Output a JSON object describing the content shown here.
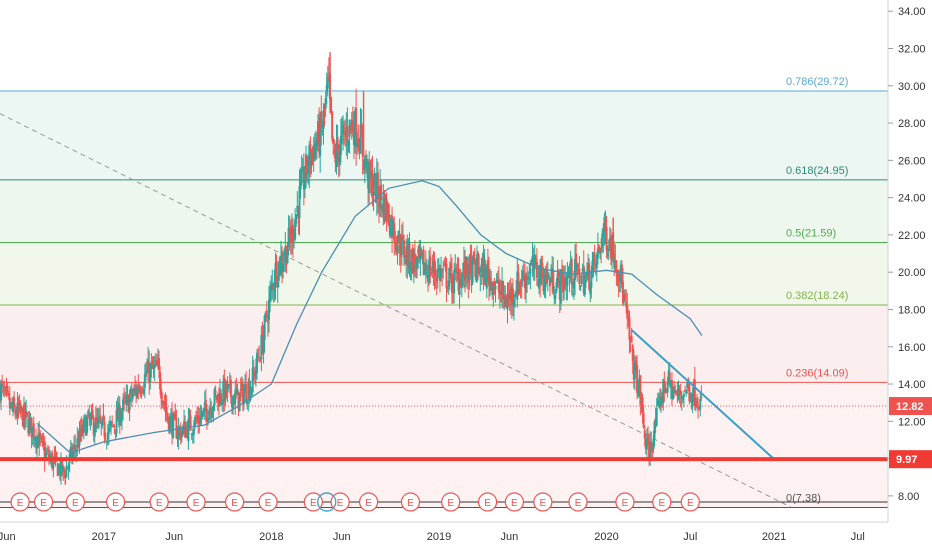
{
  "chart_data": {
    "type": "line",
    "chart_kind": "candlestick",
    "grid": false,
    "colors": {
      "up": "#26a69a",
      "down": "#ef5350",
      "ma": "#4a8fb0",
      "trendline": "#3aa0c8",
      "support": "#f23a35",
      "dashed_trend": "#999999",
      "price_line": "#ef5350",
      "earnings": "#ef5350"
    },
    "y_axis": {
      "ylim": [
        6.6,
        34.6
      ],
      "ticks": [
        "8.00",
        "10.00",
        "12.00",
        "14.00",
        "16.00",
        "18.00",
        "20.00",
        "22.00",
        "24.00",
        "26.00",
        "28.00",
        "30.00",
        "32.00",
        "34.00"
      ]
    },
    "x_axis": {
      "xlim": [
        2016.38,
        2021.68
      ],
      "ticks": [
        {
          "label": "Jun",
          "x": 2016.42
        },
        {
          "label": "2017",
          "x": 2017.0
        },
        {
          "label": "Jun",
          "x": 2017.42
        },
        {
          "label": "2018",
          "x": 2018.0
        },
        {
          "label": "Jun",
          "x": 2018.42
        },
        {
          "label": "2019",
          "x": 2019.0
        },
        {
          "label": "Jun",
          "x": 2019.42
        },
        {
          "label": "2020",
          "x": 2020.0
        },
        {
          "label": "Jul",
          "x": 2020.5
        },
        {
          "label": "2021",
          "x": 2021.0
        },
        {
          "label": "Jul",
          "x": 2021.5
        }
      ]
    },
    "fib_levels": [
      {
        "label": "0.786(29.72)",
        "value": 29.72,
        "color": "#5aa9d6",
        "fill": "#eef6fb"
      },
      {
        "label": "0.618(24.95)",
        "value": 24.95,
        "color": "#2e8b7a",
        "fill": "#ecf6f2"
      },
      {
        "label": "0.5(21.59)",
        "value": 21.59,
        "color": "#4caf50",
        "fill": "#eef7ee"
      },
      {
        "label": "0.382(18.24)",
        "value": 18.24,
        "color": "#80b44b",
        "fill": "#f2f7ec"
      },
      {
        "label": "0.236(14.09)",
        "value": 14.09,
        "color": "#ef5350",
        "fill": "#fbeeee"
      },
      {
        "label": "0(7.38)",
        "value": 7.38,
        "color": "#555555",
        "fill": "#fdf1f1"
      }
    ],
    "support_level": {
      "label": "9.97",
      "value": 9.97
    },
    "last_price": {
      "label": "12.82",
      "value": 12.82
    },
    "moving_average": [
      [
        2016.6,
        11.9
      ],
      [
        2016.8,
        10.3
      ],
      [
        2017.0,
        10.9
      ],
      [
        2017.3,
        11.4
      ],
      [
        2017.6,
        11.8
      ],
      [
        2017.8,
        12.8
      ],
      [
        2018.0,
        14.0
      ],
      [
        2018.15,
        17.2
      ],
      [
        2018.3,
        20.0
      ],
      [
        2018.5,
        23.0
      ],
      [
        2018.7,
        24.5
      ],
      [
        2018.9,
        24.9
      ],
      [
        2019.0,
        24.6
      ],
      [
        2019.1,
        23.6
      ],
      [
        2019.25,
        22.0
      ],
      [
        2019.4,
        21.0
      ],
      [
        2019.6,
        20.2
      ],
      [
        2019.8,
        19.9
      ],
      [
        2020.0,
        20.1
      ],
      [
        2020.15,
        19.9
      ],
      [
        2020.3,
        18.8
      ],
      [
        2020.5,
        17.5
      ],
      [
        2020.57,
        16.6
      ]
    ],
    "price_path": [
      [
        2016.38,
        13.8
      ],
      [
        2016.45,
        12.6
      ],
      [
        2016.52,
        12.3
      ],
      [
        2016.6,
        11.2
      ],
      [
        2016.65,
        10.2
      ],
      [
        2016.72,
        9.6
      ],
      [
        2016.76,
        9.2
      ],
      [
        2016.82,
        10.4
      ],
      [
        2016.9,
        12.0
      ],
      [
        2016.96,
        11.8
      ],
      [
        2017.03,
        11.4
      ],
      [
        2017.1,
        12.5
      ],
      [
        2017.18,
        13.5
      ],
      [
        2017.26,
        14.6
      ],
      [
        2017.32,
        14.8
      ],
      [
        2017.38,
        12.2
      ],
      [
        2017.45,
        11.4
      ],
      [
        2017.52,
        11.8
      ],
      [
        2017.6,
        12.4
      ],
      [
        2017.66,
        13.2
      ],
      [
        2017.73,
        13.6
      ],
      [
        2017.8,
        13.2
      ],
      [
        2017.88,
        14.0
      ],
      [
        2017.94,
        16.0
      ],
      [
        2018.02,
        20.0
      ],
      [
        2018.08,
        21.0
      ],
      [
        2018.12,
        22.0
      ],
      [
        2018.18,
        24.5
      ],
      [
        2018.24,
        26.5
      ],
      [
        2018.3,
        27.5
      ],
      [
        2018.34,
        30.0
      ],
      [
        2018.37,
        26.0
      ],
      [
        2018.42,
        27.0
      ],
      [
        2018.48,
        28.0
      ],
      [
        2018.52,
        27.5
      ],
      [
        2018.58,
        25.0
      ],
      [
        2018.62,
        24.5
      ],
      [
        2018.68,
        23.5
      ],
      [
        2018.74,
        22.0
      ],
      [
        2018.8,
        21.0
      ],
      [
        2018.86,
        20.5
      ],
      [
        2018.93,
        20.2
      ],
      [
        2019.0,
        20.0
      ],
      [
        2019.08,
        19.5
      ],
      [
        2019.16,
        20.0
      ],
      [
        2019.24,
        20.2
      ],
      [
        2019.32,
        19.6
      ],
      [
        2019.4,
        18.4
      ],
      [
        2019.48,
        19.5
      ],
      [
        2019.56,
        20.2
      ],
      [
        2019.64,
        19.7
      ],
      [
        2019.72,
        19.3
      ],
      [
        2019.8,
        20.0
      ],
      [
        2019.88,
        19.6
      ],
      [
        2019.94,
        20.5
      ],
      [
        2019.98,
        22.2
      ],
      [
        2020.03,
        21.5
      ],
      [
        2020.08,
        20.0
      ],
      [
        2020.12,
        17.5
      ],
      [
        2020.16,
        15.0
      ],
      [
        2020.2,
        13.5
      ],
      [
        2020.23,
        11.0
      ],
      [
        2020.25,
        10.3
      ],
      [
        2020.28,
        11.2
      ],
      [
        2020.32,
        13.2
      ],
      [
        2020.36,
        14.2
      ],
      [
        2020.42,
        13.3
      ],
      [
        2020.48,
        13.8
      ],
      [
        2020.54,
        13.4
      ],
      [
        2020.57,
        12.8
      ]
    ],
    "spikes": [
      [
        2018.35,
        31.8
      ],
      [
        2018.55,
        29.7
      ],
      [
        2020.04,
        22.9
      ],
      [
        2016.77,
        8.6
      ]
    ],
    "earnings_markers": {
      "label": "E",
      "x": [
        2016.5,
        2016.64,
        2016.83,
        2017.07,
        2017.33,
        2017.55,
        2017.78,
        2017.98,
        2018.25,
        2018.41,
        2018.58,
        2018.83,
        2019.07,
        2019.29,
        2019.45,
        2019.62,
        2019.83,
        2020.11,
        2020.33,
        2020.5
      ],
      "highlight_x": 2018.33
    },
    "trendline": [
      [
        2020.15,
        16.9
      ],
      [
        2021.0,
        9.97
      ]
    ],
    "dashed_trendline": [
      [
        2016.38,
        28.5
      ],
      [
        2021.1,
        7.4
      ]
    ]
  }
}
